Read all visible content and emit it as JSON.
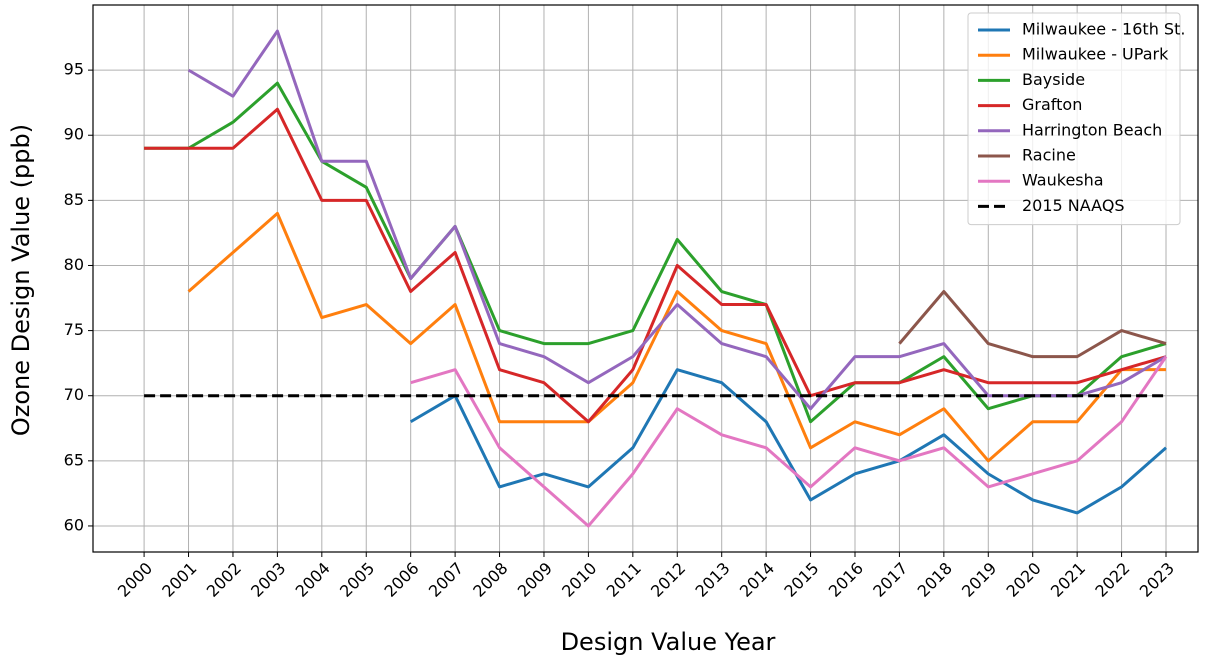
{
  "chart_data": {
    "type": "line",
    "xlabel": "Design Value Year",
    "ylabel": "Ozone Design Value (ppb)",
    "x": [
      2000,
      2001,
      2002,
      2003,
      2004,
      2005,
      2006,
      2007,
      2008,
      2009,
      2010,
      2011,
      2012,
      2013,
      2014,
      2015,
      2016,
      2017,
      2018,
      2019,
      2020,
      2021,
      2022,
      2023
    ],
    "xlim": [
      1998.85,
      2023.72
    ],
    "xticks": [
      2000,
      2001,
      2002,
      2003,
      2004,
      2005,
      2006,
      2007,
      2008,
      2009,
      2010,
      2011,
      2012,
      2013,
      2014,
      2015,
      2016,
      2017,
      2018,
      2019,
      2020,
      2021,
      2022,
      2023
    ],
    "ylim": [
      58,
      100
    ],
    "yticks": [
      60,
      65,
      70,
      75,
      80,
      85,
      90,
      95
    ],
    "grid": true,
    "legend": "upper right",
    "series": [
      {
        "name": "Milwaukee - 16th St.",
        "color": "#1f77b4",
        "values": [
          null,
          null,
          null,
          null,
          null,
          null,
          68,
          70,
          63,
          64,
          63,
          66,
          72,
          71,
          68,
          62,
          64,
          65,
          67,
          64,
          62,
          61,
          63,
          66
        ]
      },
      {
        "name": "Milwaukee - UPark",
        "color": "#ff7f0e",
        "values": [
          null,
          78,
          81,
          84,
          76,
          77,
          74,
          77,
          68,
          68,
          68,
          71,
          78,
          75,
          74,
          66,
          68,
          67,
          69,
          65,
          68,
          68,
          72,
          72
        ]
      },
      {
        "name": "Bayside",
        "color": "#2ca02c",
        "values": [
          89,
          89,
          91,
          94,
          88,
          86,
          79,
          83,
          75,
          74,
          74,
          75,
          82,
          78,
          77,
          68,
          71,
          71,
          73,
          69,
          70,
          70,
          73,
          74
        ]
      },
      {
        "name": "Grafton",
        "color": "#d62728",
        "values": [
          89,
          89,
          89,
          92,
          85,
          85,
          78,
          81,
          72,
          71,
          68,
          72,
          80,
          77,
          77,
          70,
          71,
          71,
          72,
          71,
          71,
          71,
          72,
          73
        ]
      },
      {
        "name": "Harrington Beach",
        "color": "#9467bd",
        "values": [
          null,
          95,
          93,
          98,
          88,
          88,
          79,
          83,
          74,
          73,
          71,
          73,
          77,
          74,
          73,
          69,
          73,
          73,
          74,
          70,
          70,
          70,
          71,
          73
        ]
      },
      {
        "name": "Racine",
        "color": "#8c564b",
        "values": [
          null,
          null,
          null,
          null,
          null,
          null,
          null,
          null,
          null,
          null,
          null,
          null,
          null,
          null,
          null,
          null,
          null,
          74,
          78,
          74,
          73,
          73,
          75,
          74
        ]
      },
      {
        "name": "Waukesha",
        "color": "#e377c2",
        "values": [
          null,
          null,
          null,
          null,
          null,
          null,
          71,
          72,
          66,
          63,
          60,
          64,
          69,
          67,
          66,
          63,
          66,
          65,
          66,
          63,
          64,
          65,
          68,
          73
        ]
      },
      {
        "name": "2015 NAAQS",
        "color": "#000000",
        "linestyle": "dashed",
        "values": [
          70,
          70,
          70,
          70,
          70,
          70,
          70,
          70,
          70,
          70,
          70,
          70,
          70,
          70,
          70,
          70,
          70,
          70,
          70,
          70,
          70,
          70,
          70,
          70
        ]
      }
    ]
  }
}
